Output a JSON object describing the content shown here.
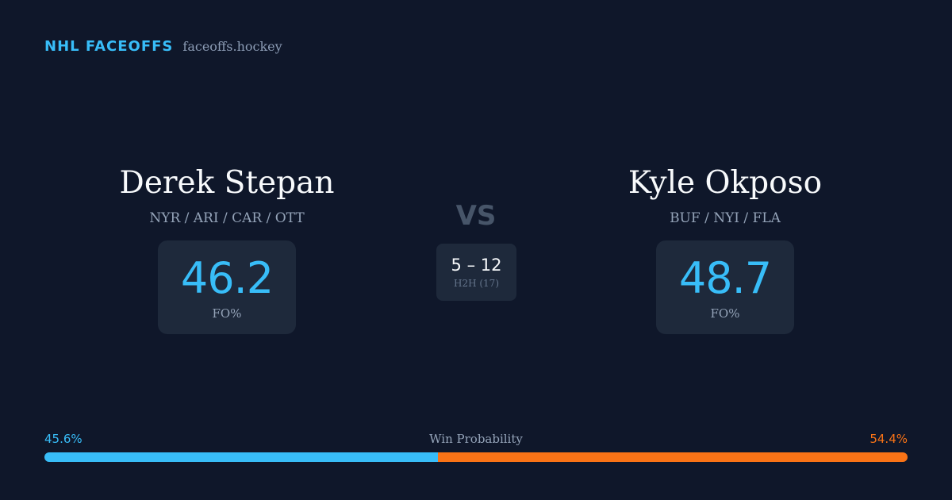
{
  "brand": {
    "title": "NHL FACEOFFS",
    "url": "faceoffs.hockey"
  },
  "player_left": {
    "name": "Derek Stepan",
    "teams": "NYR / ARI / CAR / OTT",
    "fo_pct": "46.2",
    "fo_label": "FO%"
  },
  "player_right": {
    "name": "Kyle Okposo",
    "teams": "BUF / NYI / FLA",
    "fo_pct": "48.7",
    "fo_label": "FO%"
  },
  "versus": {
    "label": "VS",
    "h2h_score": "5 – 12",
    "h2h_label": "H2H (17)"
  },
  "win_probability": {
    "title": "Win Probability",
    "left_label": "45.6%",
    "right_label": "54.4%",
    "left_value": 45.6,
    "right_value": 54.4,
    "left_color": "#38bdf8",
    "right_color": "#f97316"
  }
}
